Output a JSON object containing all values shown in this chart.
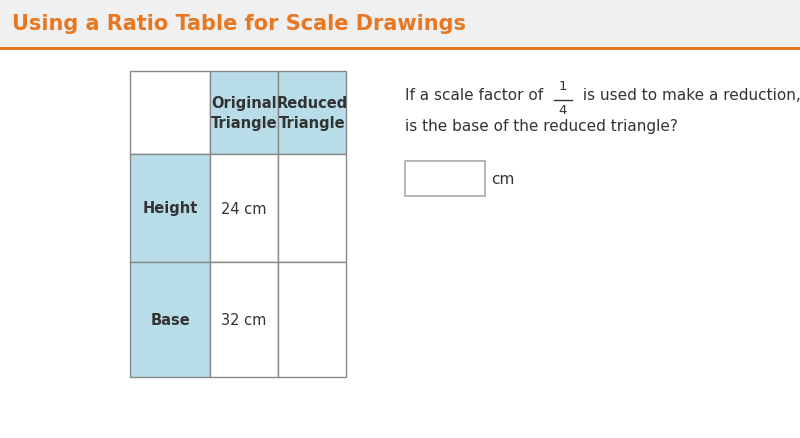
{
  "title": "Using a Ratio Table for Scale Drawings",
  "title_color": "#E87722",
  "title_fontsize": 15,
  "background_color": "#ffffff",
  "title_bg_color": "#f0f0f0",
  "orange_bar_color": "#E87722",
  "header_bg": "#b8dde8",
  "row_label_bg": "#b8dde8",
  "cell_bg": "#ffffff",
  "grid_color": "#888888",
  "col_headers": [
    "Original\nTriangle",
    "Reduced\nTriangle"
  ],
  "row_labels": [
    "Height",
    "Base"
  ],
  "original_values": [
    "24 cm",
    "32 cm"
  ],
  "text_color": "#333333",
  "fraction_num": "1",
  "fraction_den": "4",
  "q_line1": "If a scale factor of",
  "q_line2": "is used to make a reduction, what",
  "q_line3": "is the base of the reduced triangle?",
  "input_label": "cm"
}
